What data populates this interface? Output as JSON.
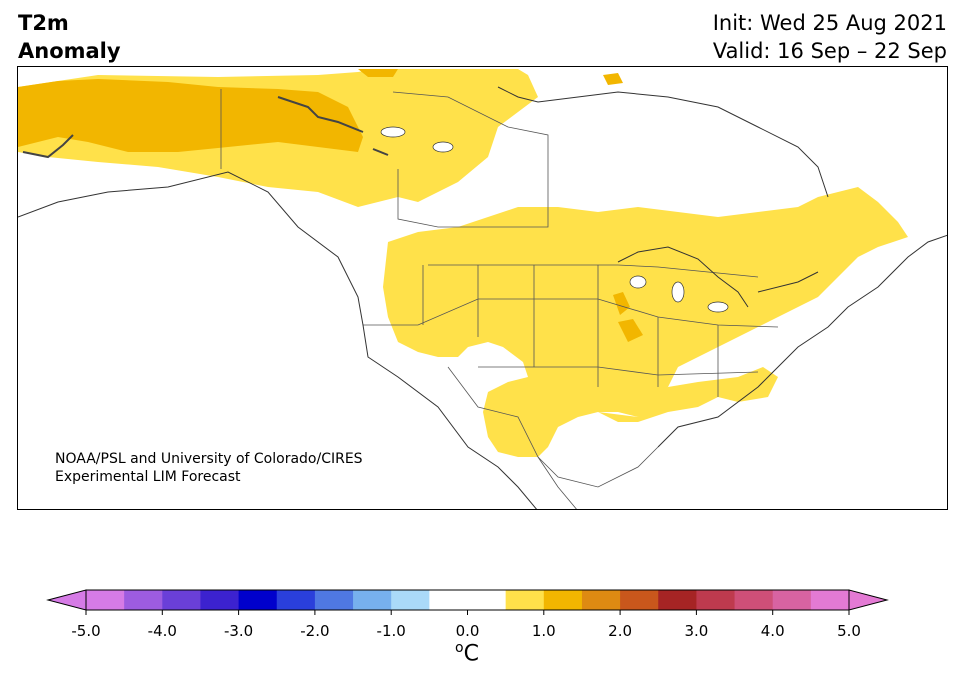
{
  "title": {
    "line1": "T2m",
    "line2": "Anomaly"
  },
  "dates": {
    "init": "Init: Wed 25 Aug 2021",
    "valid": "Valid: 16 Sep – 22 Sep"
  },
  "credit": {
    "line1": "NOAA/PSL and University of Colorado/CIRES",
    "line2": "Experimental LIM Forecast"
  },
  "colorbar": {
    "unit_prefix": "o",
    "unit_main": "C",
    "ticks": [
      "-5.0",
      "-4.0",
      "-3.0",
      "-2.0",
      "-1.0",
      "0.0",
      "1.0",
      "2.0",
      "3.0",
      "4.0",
      "5.0"
    ],
    "colors": [
      "#d67be6",
      "#9d5ce0",
      "#6a3fd8",
      "#3c22cf",
      "#0000cc",
      "#2a3fdb",
      "#4f78e3",
      "#77b0ee",
      "#aadaf8",
      "#ffffff",
      "#ffffff",
      "#ffe14a",
      "#f2b600",
      "#de8a12",
      "#c9571c",
      "#a62424",
      "#be3a4e",
      "#ce4f78",
      "#d863a2",
      "#e37ad4"
    ],
    "under_color": "#d67be6",
    "over_color": "#e37ad4"
  },
  "legend_colors": {
    "light_yellow": "#ffe14a",
    "gold": "#f2b600",
    "orange": "#de8a12"
  }
}
